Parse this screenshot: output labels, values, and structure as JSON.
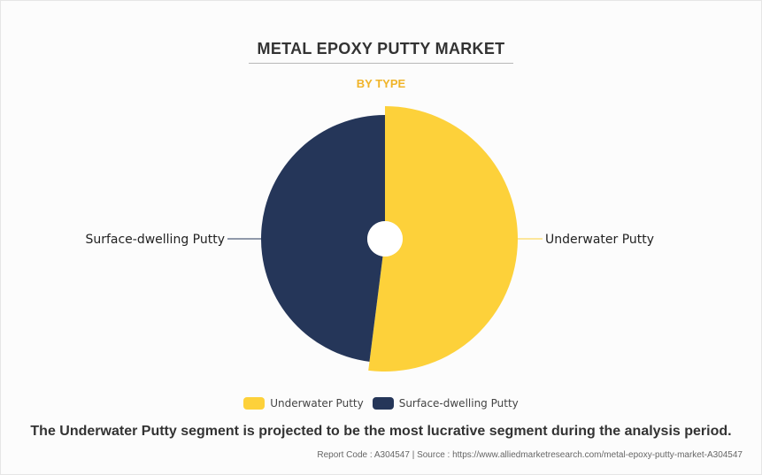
{
  "header": {
    "title": "METAL EPOXY PUTTY MARKET",
    "subtitle": "BY TYPE"
  },
  "chart_data": {
    "type": "pie",
    "style": "donut",
    "segments": [
      {
        "label": "Underwater Putty",
        "value": 52,
        "color": "#fdd13a"
      },
      {
        "label": "Surface-dwelling Putty",
        "value": 48,
        "color": "#253659"
      }
    ]
  },
  "legend": {
    "items": [
      {
        "label": "Underwater Putty",
        "color": "#fdd13a"
      },
      {
        "label": "Surface-dwelling Putty",
        "color": "#253659"
      }
    ]
  },
  "caption": "The Underwater Putty segment is projected to be the most lucrative segment during the analysis period.",
  "footer": {
    "text": "Report Code : A304547  |  Source : https://www.alliedmarketresearch.com/metal-epoxy-putty-market-A304547"
  }
}
